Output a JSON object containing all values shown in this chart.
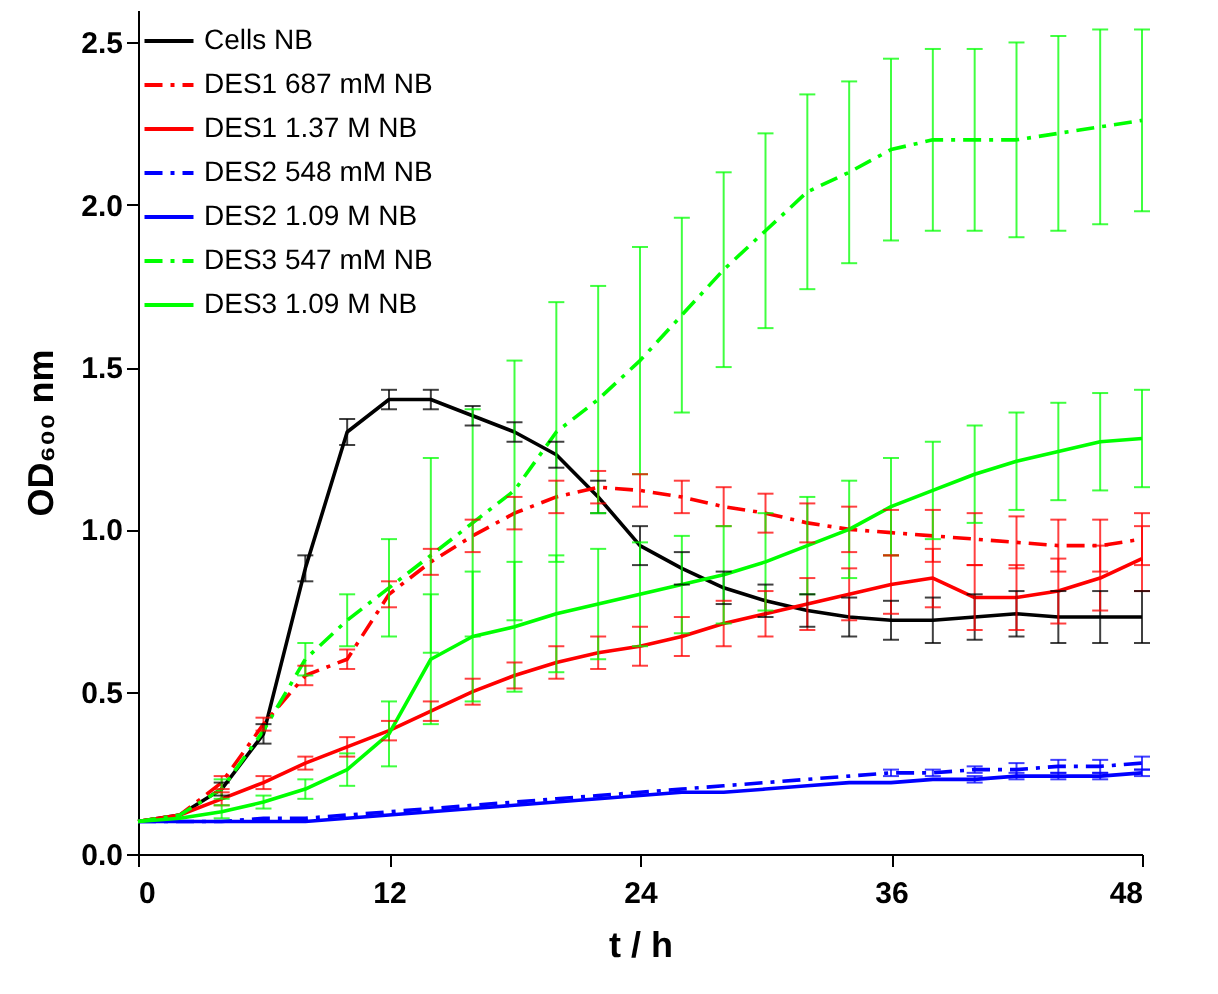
{
  "chart_data": {
    "type": "line",
    "xlabel": "t / h",
    "ylabel": "OD₆₀₀ nm",
    "x": [
      0,
      2,
      4,
      6,
      8,
      10,
      12,
      14,
      16,
      18,
      20,
      22,
      24,
      26,
      28,
      30,
      32,
      34,
      36,
      38,
      40,
      42,
      44,
      46,
      48
    ],
    "xlim": [
      0,
      48
    ],
    "xticks": [
      0,
      12,
      24,
      36,
      48
    ],
    "ylim": [
      0,
      2.6
    ],
    "yticks": [
      {
        "value": 0,
        "label": "0.0"
      },
      {
        "value": 0.5,
        "label": "0.5"
      },
      {
        "value": 1,
        "label": "1.0"
      },
      {
        "value": 1.5,
        "label": "1.5"
      },
      {
        "value": 2,
        "label": "2.0"
      },
      {
        "value": 2.5,
        "label": "2.5"
      }
    ],
    "grid": false,
    "legend": "top left",
    "marker": "none",
    "series": [
      {
        "name": "Cells NB",
        "color": "#000000",
        "line_style": "solid",
        "values": [
          0.1,
          0.12,
          0.2,
          0.37,
          0.88,
          1.3,
          1.4,
          1.4,
          1.35,
          1.3,
          1.23,
          1.1,
          0.95,
          0.88,
          0.82,
          0.78,
          0.75,
          0.73,
          0.72,
          0.72,
          0.73,
          0.74,
          0.73,
          0.73,
          0.73
        ],
        "errors": [
          null,
          null,
          0.02,
          0.03,
          0.04,
          0.04,
          0.03,
          0.03,
          0.03,
          0.03,
          0.04,
          0.05,
          0.06,
          0.05,
          0.05,
          0.05,
          0.05,
          0.06,
          0.06,
          0.07,
          0.07,
          0.07,
          0.08,
          0.08,
          0.08
        ]
      },
      {
        "name": "DES1 687 mM NB",
        "color": "#ff0000",
        "line_style": "dashed",
        "values": [
          0.1,
          0.12,
          0.22,
          0.4,
          0.55,
          0.6,
          0.8,
          0.9,
          0.98,
          1.05,
          1.1,
          1.13,
          1.12,
          1.1,
          1.07,
          1.05,
          1.02,
          1.0,
          0.99,
          0.98,
          0.97,
          0.96,
          0.95,
          0.95,
          0.97
        ],
        "errors": [
          null,
          null,
          0.02,
          0.02,
          0.03,
          0.03,
          0.04,
          0.04,
          0.05,
          0.05,
          0.05,
          0.05,
          0.05,
          0.05,
          0.06,
          0.06,
          0.06,
          0.07,
          0.07,
          0.08,
          0.08,
          0.08,
          0.08,
          0.08,
          0.08
        ]
      },
      {
        "name": "DES1 1.37 M NB",
        "color": "#ff0000",
        "line_style": "solid",
        "values": [
          0.1,
          0.12,
          0.17,
          0.22,
          0.28,
          0.33,
          0.38,
          0.44,
          0.5,
          0.55,
          0.59,
          0.62,
          0.64,
          0.67,
          0.71,
          0.74,
          0.77,
          0.8,
          0.83,
          0.85,
          0.79,
          0.79,
          0.81,
          0.85,
          0.91
        ],
        "errors": [
          null,
          null,
          0.02,
          0.02,
          0.02,
          0.03,
          0.03,
          0.03,
          0.04,
          0.04,
          0.05,
          0.05,
          0.06,
          0.06,
          0.07,
          0.07,
          0.08,
          0.08,
          0.09,
          0.09,
          0.1,
          0.1,
          0.1,
          0.1,
          0.1
        ]
      },
      {
        "name": "DES2 548 mM NB",
        "color": "#0000ff",
        "line_style": "dashed",
        "values": [
          0.1,
          0.1,
          0.1,
          0.11,
          0.11,
          0.12,
          0.13,
          0.14,
          0.15,
          0.16,
          0.17,
          0.18,
          0.19,
          0.2,
          0.21,
          0.22,
          0.23,
          0.24,
          0.25,
          0.25,
          0.26,
          0.26,
          0.27,
          0.27,
          0.28
        ],
        "errors": [
          null,
          null,
          null,
          null,
          null,
          null,
          null,
          null,
          null,
          null,
          null,
          null,
          null,
          null,
          null,
          null,
          null,
          null,
          0.01,
          0.01,
          0.01,
          0.02,
          0.02,
          0.02,
          0.02
        ]
      },
      {
        "name": "DES2 1.09 M NB",
        "color": "#0000ff",
        "line_style": "solid",
        "values": [
          0.1,
          0.1,
          0.1,
          0.1,
          0.1,
          0.11,
          0.12,
          0.13,
          0.14,
          0.15,
          0.16,
          0.17,
          0.18,
          0.19,
          0.19,
          0.2,
          0.21,
          0.22,
          0.22,
          0.23,
          0.23,
          0.24,
          0.24,
          0.24,
          0.25
        ],
        "errors": [
          null,
          null,
          null,
          null,
          null,
          null,
          null,
          null,
          null,
          null,
          null,
          null,
          null,
          null,
          null,
          null,
          null,
          null,
          null,
          null,
          0.01,
          0.01,
          0.01,
          0.01,
          0.01
        ]
      },
      {
        "name": "DES3 547 mM NB",
        "color": "#00ff00",
        "line_style": "dashed",
        "values": [
          0.1,
          0.12,
          0.2,
          0.38,
          0.6,
          0.72,
          0.82,
          0.92,
          1.02,
          1.12,
          1.3,
          1.4,
          1.52,
          1.66,
          1.8,
          1.92,
          2.04,
          2.1,
          2.17,
          2.2,
          2.2,
          2.2,
          2.22,
          2.24,
          2.26
        ],
        "errors": [
          null,
          null,
          0.03,
          null,
          0.05,
          0.08,
          0.15,
          0.3,
          0.35,
          0.4,
          0.4,
          0.35,
          0.35,
          0.3,
          0.3,
          0.3,
          0.3,
          0.28,
          0.28,
          0.28,
          0.28,
          0.3,
          0.3,
          0.3,
          0.28
        ]
      },
      {
        "name": "DES3 1.09 M NB",
        "color": "#00ff00",
        "line_style": "solid",
        "values": [
          0.1,
          0.11,
          0.13,
          0.16,
          0.2,
          0.26,
          0.37,
          0.6,
          0.67,
          0.7,
          0.74,
          0.77,
          0.8,
          0.83,
          0.86,
          0.9,
          0.95,
          1.0,
          1.07,
          1.12,
          1.17,
          1.21,
          1.24,
          1.27,
          1.28
        ],
        "errors": [
          null,
          null,
          0.02,
          0.02,
          0.03,
          0.05,
          0.1,
          0.2,
          0.2,
          0.2,
          0.18,
          0.17,
          0.16,
          0.15,
          0.15,
          0.15,
          0.15,
          0.15,
          0.15,
          0.15,
          0.15,
          0.15,
          0.15,
          0.15,
          0.15
        ]
      }
    ]
  }
}
